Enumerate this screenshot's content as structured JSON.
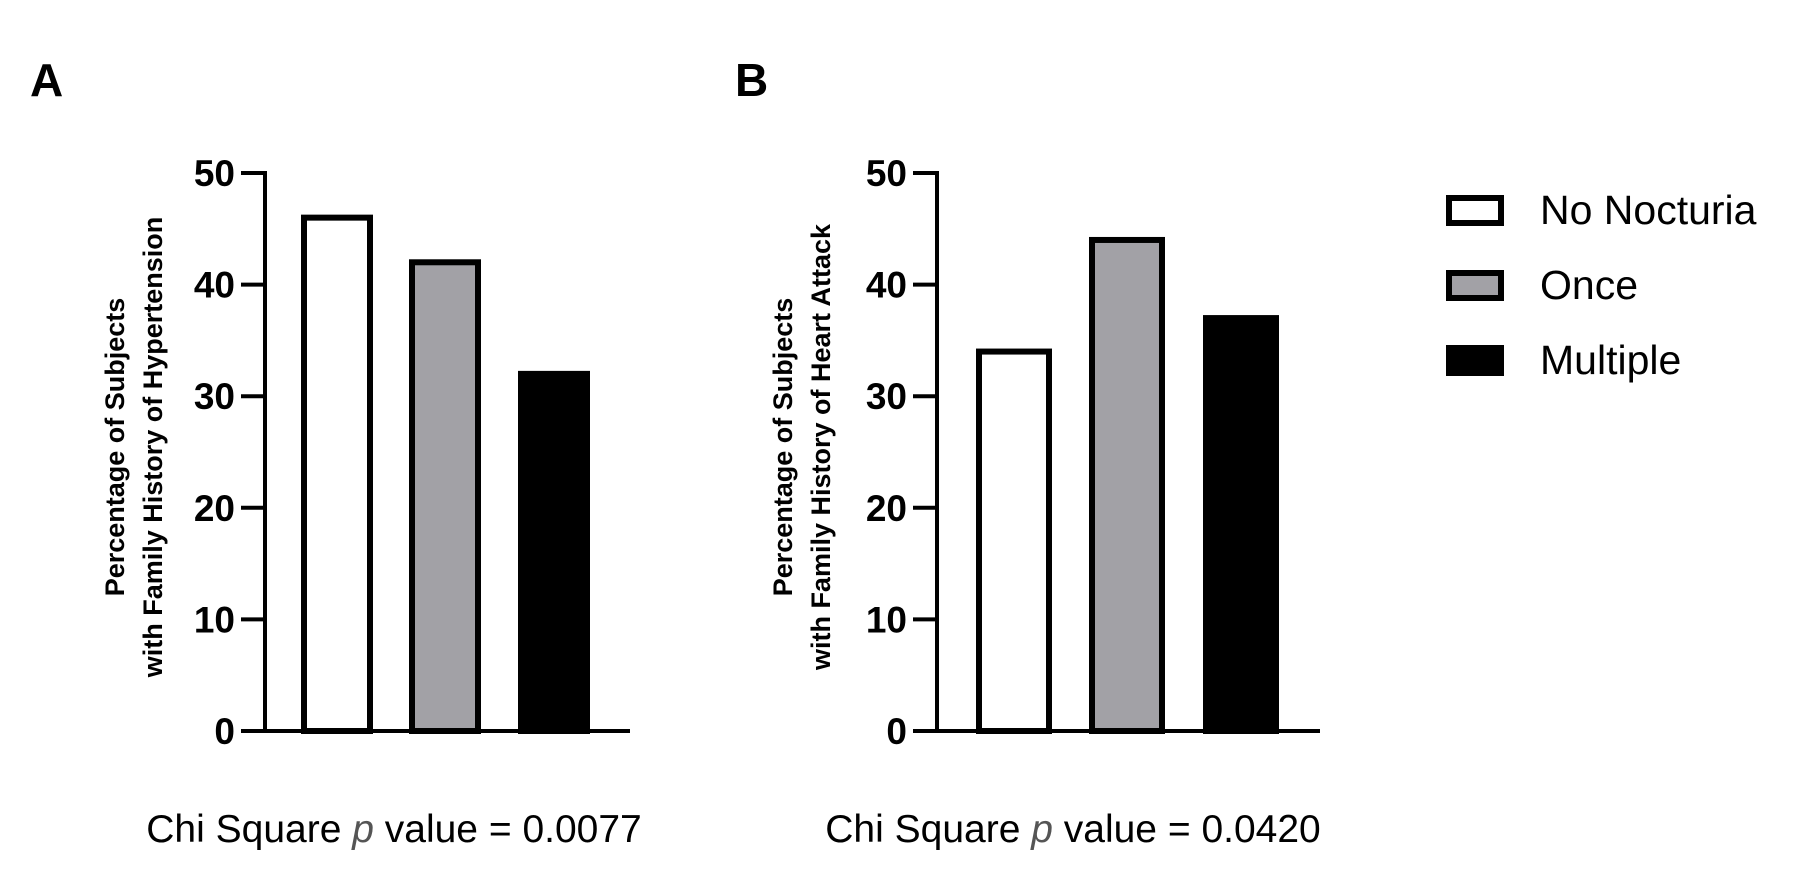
{
  "legend": {
    "items": [
      {
        "label": "No Nocturia",
        "fill": "#ffffff"
      },
      {
        "label": "Once",
        "fill": "#a2a1a6"
      },
      {
        "label": "Multiple",
        "fill": "#000000"
      }
    ]
  },
  "chart_data": [
    {
      "type": "bar",
      "panel": "A",
      "categories": [
        "No Nocturia",
        "Once",
        "Multiple"
      ],
      "values": [
        46,
        42,
        32
      ],
      "ylabel_line1": "Percentage of Subjects",
      "ylabel_line2": "with Family History of Hypertension",
      "ylim": [
        0,
        50
      ],
      "yticks": [
        0,
        10,
        20,
        30,
        40,
        50
      ],
      "caption": {
        "prefix": "Chi Square ",
        "italic": "p",
        "suffix": " value = 0.0077"
      }
    },
    {
      "type": "bar",
      "panel": "B",
      "categories": [
        "No Nocturia",
        "Once",
        "Multiple"
      ],
      "values": [
        34,
        44,
        37
      ],
      "ylabel_line1": "Percentage of Subjects",
      "ylabel_line2": "with Family History of Heart Attack",
      "ylim": [
        0,
        50
      ],
      "yticks": [
        0,
        10,
        20,
        30,
        40,
        50
      ],
      "caption": {
        "prefix": "Chi Square ",
        "italic": "p",
        "suffix": " value = 0.0420"
      }
    }
  ],
  "colors": {
    "no_nocturia": "#ffffff",
    "once": "#a2a1a6",
    "multiple": "#000000",
    "outline": "#000000"
  }
}
